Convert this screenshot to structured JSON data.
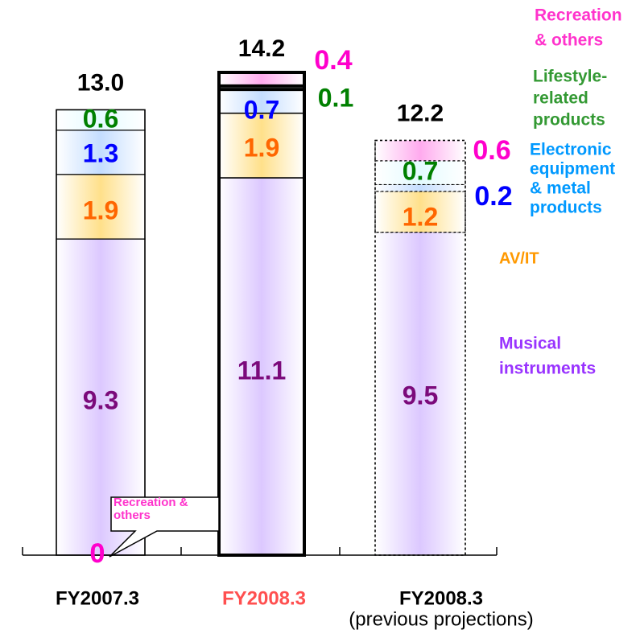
{
  "chart_data": {
    "type": "bar",
    "stacked": true,
    "title": "",
    "xlabel": "",
    "ylabel": "",
    "grid": false,
    "ylim": [
      0,
      14.2
    ],
    "categories": [
      {
        "label": "FY2007.3",
        "sublabel": "",
        "color": "#000000",
        "style": "normal"
      },
      {
        "label": "FY2008.3",
        "sublabel": "",
        "color": "#ff5050",
        "style": "bold"
      },
      {
        "label": "FY2008.3",
        "sublabel": "(previous projections)",
        "color": "#000000",
        "style": "dashed"
      }
    ],
    "totals": [
      "13.0",
      "14.2",
      "12.2"
    ],
    "series": [
      {
        "name": "Musical instruments",
        "legend": [
          "Musical",
          "instruments"
        ],
        "fill": "#dcc8ff",
        "value_color": "#7b0a7b",
        "legend_color": "#9933ff",
        "values": [
          9.3,
          11.1,
          9.5
        ],
        "labels": [
          "9.3",
          "11.1",
          "9.5"
        ]
      },
      {
        "name": "AV/IT",
        "legend": [
          "AV/IT"
        ],
        "fill": "#ffe08a",
        "value_color": "#ff6600",
        "legend_color": "#ff9900",
        "values": [
          1.9,
          1.9,
          1.2
        ],
        "labels": [
          "1.9",
          "1.9",
          "1.2"
        ]
      },
      {
        "name": "Electronic equipment & metal products",
        "legend": [
          "Electronic",
          "equipment",
          "& metal",
          "products"
        ],
        "fill": "#c4ddff",
        "value_color": "#0000ff",
        "legend_color": "#0099ff",
        "values": [
          1.3,
          0.7,
          0.2
        ],
        "labels": [
          "1.3",
          "0.7",
          "0.2"
        ]
      },
      {
        "name": "Lifestyle-related products",
        "legend": [
          "Lifestyle-",
          "related",
          "products"
        ],
        "fill": "#e4fbff",
        "value_color": "#008000",
        "legend_color": "#339933",
        "values": [
          0.6,
          0.1,
          0.7
        ],
        "labels": [
          "0.6",
          "0.1",
          "0.7"
        ]
      },
      {
        "name": "Recreation & others",
        "legend": [
          "Recreation",
          "& others"
        ],
        "fill": "#ffaaee",
        "value_color": "#ff00cc",
        "legend_color": "#ff33cc",
        "values": [
          0,
          0.4,
          0.6
        ],
        "labels": [
          "0",
          "0.4",
          "0.6"
        ]
      }
    ],
    "callout": {
      "lines": [
        "Recreation &",
        "others"
      ],
      "color": "#ff33cc"
    }
  }
}
